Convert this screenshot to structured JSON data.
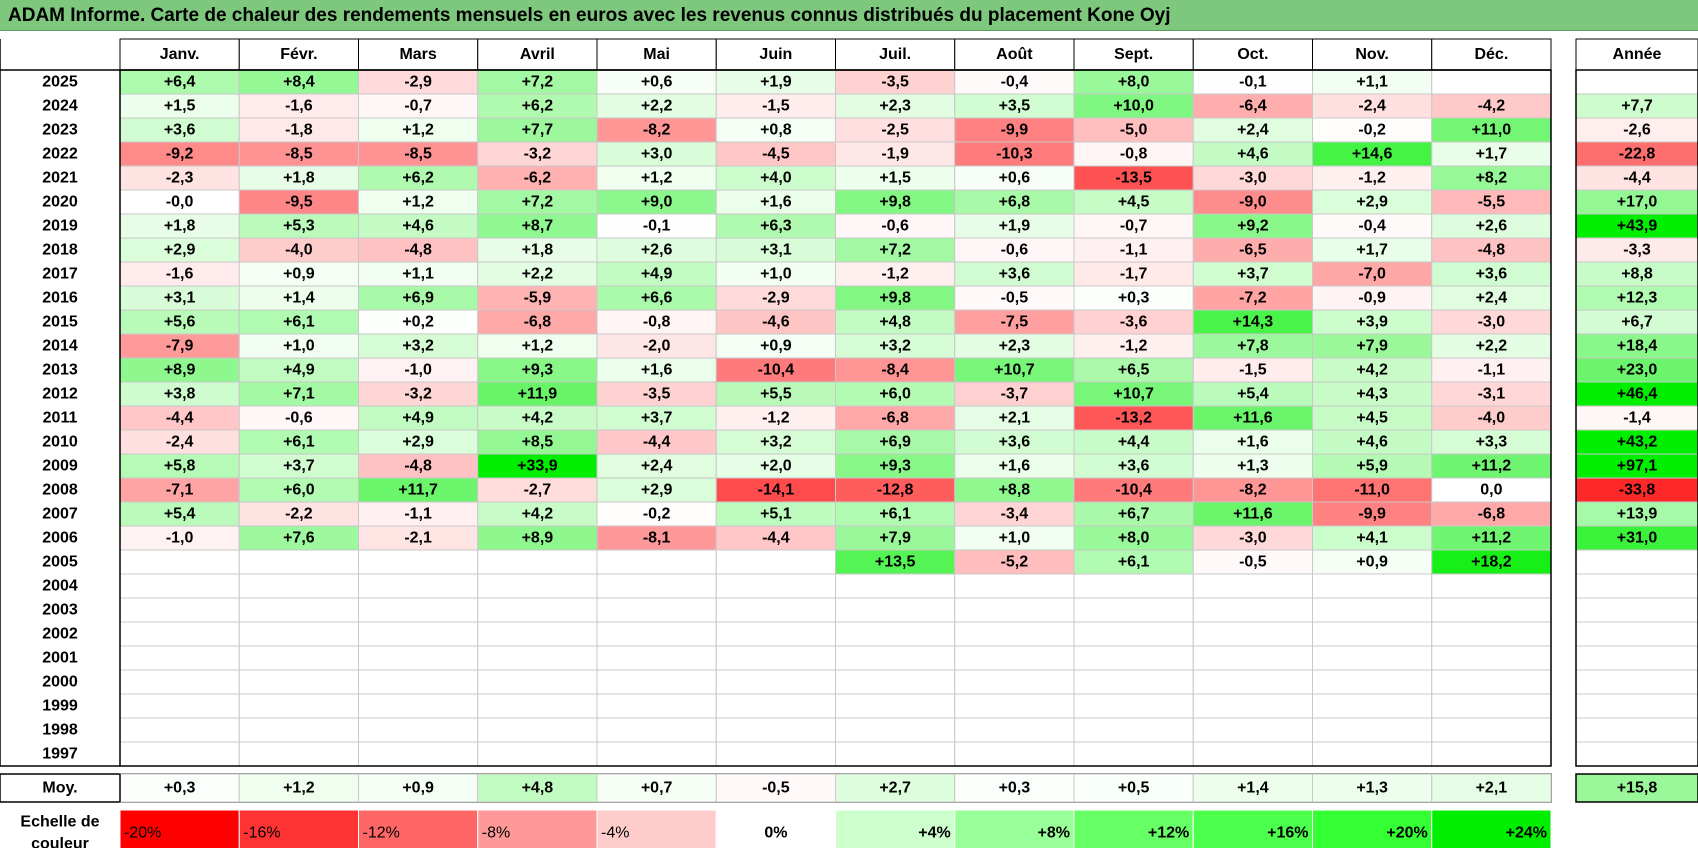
{
  "title": "ADAM Informe. Carte de chaleur des rendements mensuels en euros avec les revenus connus distribués du placement Kone Oyj",
  "chart_data": {
    "type": "heatmap",
    "title": "ADAM Informe. Carte de chaleur des rendements mensuels en euros avec les revenus connus distribués du placement Kone Oyj",
    "months": [
      "Janv.",
      "Févr.",
      "Mars",
      "Avril",
      "Mai",
      "Juin",
      "Juil.",
      "Août",
      "Sept.",
      "Oct.",
      "Nov.",
      "Déc."
    ],
    "year_header": "Année",
    "rows": [
      {
        "year": "2025",
        "values": [
          "+6,4",
          "+8,4",
          "-2,9",
          "+7,2",
          "+0,6",
          "+1,9",
          "-3,5",
          "-0,4",
          "+8,0",
          "-0,1",
          "+1,1",
          ""
        ],
        "annual": ""
      },
      {
        "year": "2024",
        "values": [
          "+1,5",
          "-1,6",
          "-0,7",
          "+6,2",
          "+2,2",
          "-1,5",
          "+2,3",
          "+3,5",
          "+10,0",
          "-6,4",
          "-2,4",
          "-4,2"
        ],
        "annual": "+7,7"
      },
      {
        "year": "2023",
        "values": [
          "+3,6",
          "-1,8",
          "+1,2",
          "+7,7",
          "-8,2",
          "+0,8",
          "-2,5",
          "-9,9",
          "-5,0",
          "+2,4",
          "-0,2",
          "+11,0"
        ],
        "annual": "-2,6"
      },
      {
        "year": "2022",
        "values": [
          "-9,2",
          "-8,5",
          "-8,5",
          "-3,2",
          "+3,0",
          "-4,5",
          "-1,9",
          "-10,3",
          "-0,8",
          "+4,6",
          "+14,6",
          "+1,7"
        ],
        "annual": "-22,8"
      },
      {
        "year": "2021",
        "values": [
          "-2,3",
          "+1,8",
          "+6,2",
          "-6,2",
          "+1,2",
          "+4,0",
          "+1,5",
          "+0,6",
          "-13,5",
          "-3,0",
          "-1,2",
          "+8,2"
        ],
        "annual": "-4,4"
      },
      {
        "year": "2020",
        "values": [
          "-0,0",
          "-9,5",
          "+1,2",
          "+7,2",
          "+9,0",
          "+1,6",
          "+9,8",
          "+6,8",
          "+4,5",
          "-9,0",
          "+2,9",
          "-5,5"
        ],
        "annual": "+17,0"
      },
      {
        "year": "2019",
        "values": [
          "+1,8",
          "+5,3",
          "+4,6",
          "+8,7",
          "-0,1",
          "+6,3",
          "-0,6",
          "+1,9",
          "-0,7",
          "+9,2",
          "-0,4",
          "+2,6"
        ],
        "annual": "+43,9"
      },
      {
        "year": "2018",
        "values": [
          "+2,9",
          "-4,0",
          "-4,8",
          "+1,8",
          "+2,6",
          "+3,1",
          "+7,2",
          "-0,6",
          "-1,1",
          "-6,5",
          "+1,7",
          "-4,8"
        ],
        "annual": "-3,3"
      },
      {
        "year": "2017",
        "values": [
          "-1,6",
          "+0,9",
          "+1,1",
          "+2,2",
          "+4,9",
          "+1,0",
          "-1,2",
          "+3,6",
          "-1,7",
          "+3,7",
          "-7,0",
          "+3,6"
        ],
        "annual": "+8,8"
      },
      {
        "year": "2016",
        "values": [
          "+3,1",
          "+1,4",
          "+6,9",
          "-5,9",
          "+6,6",
          "-2,9",
          "+9,8",
          "-0,5",
          "+0,3",
          "-7,2",
          "-0,9",
          "+2,4"
        ],
        "annual": "+12,3"
      },
      {
        "year": "2015",
        "values": [
          "+5,6",
          "+6,1",
          "+0,2",
          "-6,8",
          "-0,8",
          "-4,6",
          "+4,8",
          "-7,5",
          "-3,6",
          "+14,3",
          "+3,9",
          "-3,0"
        ],
        "annual": "+6,7"
      },
      {
        "year": "2014",
        "values": [
          "-7,9",
          "+1,0",
          "+3,2",
          "+1,2",
          "-2,0",
          "+0,9",
          "+3,2",
          "+2,3",
          "-1,2",
          "+7,8",
          "+7,9",
          "+2,2"
        ],
        "annual": "+18,4"
      },
      {
        "year": "2013",
        "values": [
          "+8,9",
          "+4,9",
          "-1,0",
          "+9,3",
          "+1,6",
          "-10,4",
          "-8,4",
          "+10,7",
          "+6,5",
          "-1,5",
          "+4,2",
          "-1,1"
        ],
        "annual": "+23,0"
      },
      {
        "year": "2012",
        "values": [
          "+3,8",
          "+7,1",
          "-3,2",
          "+11,9",
          "-3,5",
          "+5,5",
          "+6,0",
          "-3,7",
          "+10,7",
          "+5,4",
          "+4,3",
          "-3,1"
        ],
        "annual": "+46,4"
      },
      {
        "year": "2011",
        "values": [
          "-4,4",
          "-0,6",
          "+4,9",
          "+4,2",
          "+3,7",
          "-1,2",
          "-6,8",
          "+2,1",
          "-13,2",
          "+11,6",
          "+4,5",
          "-4,0"
        ],
        "annual": "-1,4"
      },
      {
        "year": "2010",
        "values": [
          "-2,4",
          "+6,1",
          "+2,9",
          "+8,5",
          "-4,4",
          "+3,2",
          "+6,9",
          "+3,6",
          "+4,4",
          "+1,6",
          "+4,6",
          "+3,3"
        ],
        "annual": "+43,2"
      },
      {
        "year": "2009",
        "values": [
          "+5,8",
          "+3,7",
          "-4,8",
          "+33,9",
          "+2,4",
          "+2,0",
          "+9,3",
          "+1,6",
          "+3,6",
          "+1,3",
          "+5,9",
          "+11,2"
        ],
        "annual": "+97,1"
      },
      {
        "year": "2008",
        "values": [
          "-7,1",
          "+6,0",
          "+11,7",
          "-2,7",
          "+2,9",
          "-14,1",
          "-12,8",
          "+8,8",
          "-10,4",
          "-8,2",
          "-11,0",
          "0,0"
        ],
        "annual": "-33,8"
      },
      {
        "year": "2007",
        "values": [
          "+5,4",
          "-2,2",
          "-1,1",
          "+4,2",
          "-0,2",
          "+5,1",
          "+6,1",
          "-3,4",
          "+6,7",
          "+11,6",
          "-9,9",
          "-6,8"
        ],
        "annual": "+13,9"
      },
      {
        "year": "2006",
        "values": [
          "-1,0",
          "+7,6",
          "-2,1",
          "+8,9",
          "-8,1",
          "-4,4",
          "+7,9",
          "+1,0",
          "+8,0",
          "-3,0",
          "+4,1",
          "+11,2"
        ],
        "annual": "+31,0"
      },
      {
        "year": "2005",
        "values": [
          "",
          "",
          "",
          "",
          "",
          "",
          "+13,5",
          "-5,2",
          "+6,1",
          "-0,5",
          "+0,9",
          "+18,2"
        ],
        "annual": ""
      },
      {
        "year": "2004",
        "values": [
          "",
          "",
          "",
          "",
          "",
          "",
          "",
          "",
          "",
          "",
          "",
          ""
        ],
        "annual": ""
      },
      {
        "year": "2003",
        "values": [
          "",
          "",
          "",
          "",
          "",
          "",
          "",
          "",
          "",
          "",
          "",
          ""
        ],
        "annual": ""
      },
      {
        "year": "2002",
        "values": [
          "",
          "",
          "",
          "",
          "",
          "",
          "",
          "",
          "",
          "",
          "",
          ""
        ],
        "annual": ""
      },
      {
        "year": "2001",
        "values": [
          "",
          "",
          "",
          "",
          "",
          "",
          "",
          "",
          "",
          "",
          "",
          ""
        ],
        "annual": ""
      },
      {
        "year": "2000",
        "values": [
          "",
          "",
          "",
          "",
          "",
          "",
          "",
          "",
          "",
          "",
          "",
          ""
        ],
        "annual": ""
      },
      {
        "year": "1999",
        "values": [
          "",
          "",
          "",
          "",
          "",
          "",
          "",
          "",
          "",
          "",
          "",
          ""
        ],
        "annual": ""
      },
      {
        "year": "1998",
        "values": [
          "",
          "",
          "",
          "",
          "",
          "",
          "",
          "",
          "",
          "",
          "",
          ""
        ],
        "annual": ""
      },
      {
        "year": "1997",
        "values": [
          "",
          "",
          "",
          "",
          "",
          "",
          "",
          "",
          "",
          "",
          "",
          ""
        ],
        "annual": ""
      }
    ],
    "average": {
      "label": "Moy.",
      "values": [
        "+0,3",
        "+1,2",
        "+0,9",
        "+4,8",
        "+0,7",
        "-0,5",
        "+2,7",
        "+0,3",
        "+0,5",
        "+1,4",
        "+1,3",
        "+2,1"
      ],
      "annual": "+15,8"
    },
    "scale": {
      "label_line1": "Echelle de",
      "label_line2": "couleur",
      "entries": [
        {
          "label": "-20%",
          "color": "#ff0000"
        },
        {
          "label": "-16%",
          "color": "#ff3333"
        },
        {
          "label": "-12%",
          "color": "#ff6666"
        },
        {
          "label": "-8%",
          "color": "#ff9999"
        },
        {
          "label": "-4%",
          "color": "#ffcccc"
        },
        {
          "label": "0%",
          "color": "#ffffff"
        },
        {
          "label": "+4%",
          "color": "#ccffcc"
        },
        {
          "label": "+8%",
          "color": "#99ff99"
        },
        {
          "label": "+12%",
          "color": "#66ff66"
        },
        {
          "label": "+16%",
          "color": "#4cff4c"
        },
        {
          "label": "+20%",
          "color": "#33ff33"
        },
        {
          "label": "+24%",
          "color": "#00ee00"
        }
      ]
    }
  }
}
